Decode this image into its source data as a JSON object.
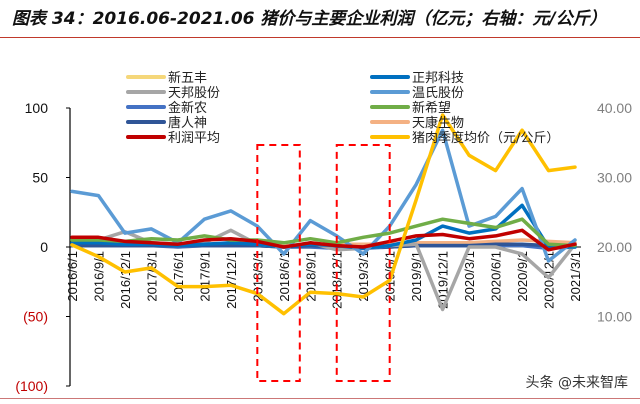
{
  "title": "图表 34：2016.06-2021.06 猪价与主要企业利润（亿元；右轴：元/公斤）",
  "watermark": "头条 @未来智库",
  "chart_data": {
    "type": "line",
    "title": "图表 34：2016.06-2021.06 猪价与主要企业利润（亿元；右轴：元/公斤）",
    "categories": [
      "2016/6/1",
      "2016/9/1",
      "2016/12/1",
      "2017/3/1",
      "2017/6/1",
      "2017/9/1",
      "2017/12/1",
      "2018/3/1",
      "2018/6/1",
      "2018/9/1",
      "2018/12/1",
      "2019/3/1",
      "2019/6/1",
      "2019/9/1",
      "2019/12/1",
      "2020/3/1",
      "2020/6/1",
      "2020/9/1",
      "2020/12/1",
      "2021/3/1"
    ],
    "left_axis": {
      "ylim": [
        -100,
        100
      ],
      "ticks": [
        100,
        50,
        0,
        -50,
        -100
      ],
      "tick_labels": [
        "100",
        "50",
        "0",
        "(50)",
        "(100)"
      ]
    },
    "right_axis": {
      "ylim": [
        0,
        40
      ],
      "ticks": [
        40,
        30,
        20,
        10
      ],
      "tick_labels": [
        "40.00",
        "30.00",
        "20.00",
        "10.00"
      ]
    },
    "legend_position": "top",
    "series": [
      {
        "name": "新五丰",
        "axis": "left",
        "color": "#f5d77a",
        "values": [
          1,
          1,
          1,
          1,
          0,
          1,
          1,
          1,
          0,
          0,
          0,
          0,
          0,
          1,
          1,
          1,
          1,
          1,
          0,
          1
        ]
      },
      {
        "name": "天邦股份",
        "axis": "left",
        "color": "#a6a6a6",
        "values": [
          5,
          5,
          11,
          3,
          2,
          3,
          12,
          2,
          0,
          3,
          -2,
          -1,
          1,
          2,
          -45,
          0,
          0,
          -5,
          -22,
          2
        ]
      },
      {
        "name": "金新农",
        "axis": "left",
        "color": "#4472c4",
        "values": [
          1,
          1,
          1,
          1,
          0,
          1,
          1,
          1,
          0,
          0,
          -1,
          -1,
          0,
          1,
          1,
          1,
          1,
          1,
          -1,
          0
        ]
      },
      {
        "name": "唐人神",
        "axis": "left",
        "color": "#2f5597",
        "values": [
          1,
          1,
          1,
          1,
          1,
          1,
          1,
          1,
          0,
          1,
          0,
          0,
          0,
          1,
          1,
          1,
          2,
          2,
          1,
          1
        ]
      },
      {
        "name": "利润平均",
        "axis": "left",
        "color": "#c00000",
        "values": [
          7,
          7,
          4,
          3,
          2,
          5,
          6,
          4,
          0,
          3,
          1,
          0,
          4,
          8,
          9,
          6,
          8,
          12,
          -2,
          2
        ]
      },
      {
        "name": "正邦科技",
        "axis": "left",
        "color": "#0070c0",
        "values": [
          3,
          3,
          2,
          2,
          1,
          2,
          3,
          2,
          0,
          2,
          1,
          -1,
          1,
          5,
          15,
          10,
          13,
          30,
          0,
          0
        ]
      },
      {
        "name": "温氏股份",
        "axis": "left",
        "color": "#5b9bd5",
        "values": [
          40,
          37,
          10,
          13,
          3,
          20,
          26,
          15,
          -5,
          19,
          8,
          -5,
          15,
          45,
          84,
          15,
          22,
          42,
          -10,
          5
        ]
      },
      {
        "name": "新希望",
        "axis": "left",
        "color": "#70ad47",
        "values": [
          5,
          5,
          4,
          6,
          5,
          8,
          5,
          5,
          3,
          6,
          3,
          7,
          10,
          15,
          20,
          17,
          14,
          20,
          2,
          1
        ]
      },
      {
        "name": "天康生物",
        "axis": "left",
        "color": "#f4b183",
        "values": [
          2,
          2,
          2,
          2,
          2,
          2,
          2,
          2,
          1,
          2,
          2,
          2,
          2,
          3,
          3,
          3,
          4,
          5,
          4,
          3
        ]
      },
      {
        "name": "猪肉季度均价（元/公斤）",
        "axis": "right",
        "color": "#ffc000",
        "values": [
          20.3,
          18.6,
          16.4,
          17,
          14.3,
          14.3,
          14.5,
          13.3,
          10.4,
          13.5,
          13.3,
          12.8,
          15.2,
          26.8,
          39,
          33.2,
          31,
          36.8,
          31,
          31.5
        ]
      }
    ],
    "highlight_ranges": [
      [
        "2018/3/1",
        "2018/6/1"
      ],
      [
        "2018/12/1",
        "2019/6/1"
      ]
    ]
  }
}
